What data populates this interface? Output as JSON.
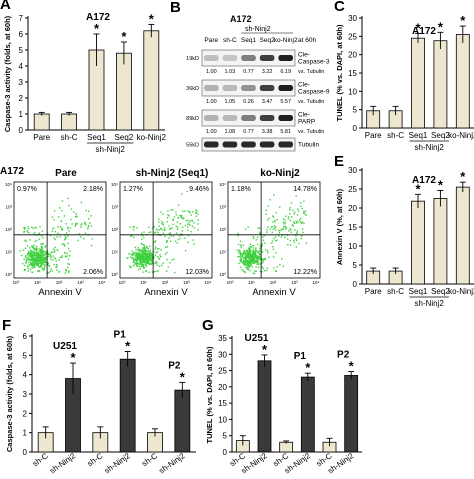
{
  "colors": {
    "beige": "#eee7cf",
    "dark": "#3a3a3a",
    "green": "#3fd13f",
    "blot": "#1e1e1e"
  },
  "panels": {
    "A": {
      "letter": "A",
      "cell": "A172"
    },
    "B": {
      "letter": "B",
      "cell": "A172",
      "group": "sh-Ninj2",
      "lanes": [
        "Pare",
        "sh-C",
        "Seq1",
        "Seq2",
        "ko-Ninj2"
      ],
      "time": "at 60h",
      "rows": [
        {
          "mw": "19kD",
          "label": "Cle-\nCaspase-3",
          "vals": [
            "1.00",
            "1.03",
            "0.77",
            "3.22",
            "6.19"
          ],
          "vs": "vs. Tubulin"
        },
        {
          "mw": "36kD",
          "label": "Cle-\nCaspase-9",
          "vals": [
            "1.00",
            "1.05",
            "0.26",
            "3.47",
            "5.57"
          ],
          "vs": "vs. Tubulin"
        },
        {
          "mw": "89kD",
          "label": "Cle-\nPARP",
          "vals": [
            "1.00",
            "1.08",
            "0.77",
            "3.38",
            "5.81"
          ],
          "vs": "vs. Tubulin"
        },
        {
          "mw": "55kD",
          "label": "Tubulin",
          "vals": [],
          "vs": ""
        }
      ]
    },
    "C": {
      "letter": "C",
      "cell": "A172"
    },
    "D": {
      "cell": "A172",
      "plots": [
        {
          "title": "Pare",
          "ul": "0.97%",
          "ur": "2.18%",
          "lr": "2.06%"
        },
        {
          "title": "sh-Ninj2 (Seq1)",
          "ul": "1.27%",
          "ur": "9.46%",
          "lr": "12.03%"
        },
        {
          "title": "ko-Ninj2",
          "ul": "1.18%",
          "ur": "14.78%",
          "lr": "12.22%"
        }
      ],
      "xlabel": "Annexin V",
      "yticks": [
        "10⁴",
        "10³",
        "10²",
        "10¹",
        "10⁰"
      ],
      "xticks": [
        "10⁰",
        "10¹",
        "10²",
        "10³",
        "10⁴"
      ]
    },
    "E": {
      "letter": "E",
      "cell": "A172"
    },
    "F": {
      "letter": "F",
      "groups": [
        "U251",
        "P1",
        "P2"
      ]
    },
    "G": {
      "letter": "G",
      "groups": [
        "U251",
        "P1",
        "P2"
      ]
    }
  },
  "chart_data": [
    {
      "panel": "A",
      "type": "bar",
      "ylabel": "Caspase-3 activity (folds, at 60h)",
      "categories": [
        "Pare",
        "sh-C",
        "Seq1",
        "Seq2",
        "ko-Ninj2"
      ],
      "group_label": "sh-Ninj2",
      "values": [
        1.0,
        1.0,
        5.0,
        4.8,
        6.2
      ],
      "errors": [
        0.1,
        0.1,
        1.0,
        0.7,
        0.4
      ],
      "significant": [
        false,
        false,
        true,
        true,
        true
      ],
      "ylim": [
        0,
        7
      ],
      "yticks": [
        0,
        1,
        2,
        3,
        4,
        5,
        6,
        7
      ]
    },
    {
      "panel": "C",
      "type": "bar",
      "ylabel": "TUNEL (% vs. DAPI, at 60h)",
      "categories": [
        "Pare",
        "sh-C",
        "Seq1",
        "Seq2",
        "ko-Ninj2"
      ],
      "group_label": "sh-Ninj2",
      "values": [
        4.7,
        4.7,
        24.5,
        23.8,
        25.5
      ],
      "errors": [
        1.2,
        1.2,
        1.3,
        2.3,
        2.3
      ],
      "significant": [
        false,
        false,
        true,
        true,
        true
      ],
      "ylim": [
        0,
        30
      ],
      "yticks": [
        0,
        5,
        10,
        15,
        20,
        25,
        30
      ]
    },
    {
      "panel": "E",
      "type": "bar",
      "ylabel": "Annexin V (%, at 60h)",
      "categories": [
        "Pare",
        "sh-C",
        "Seq1",
        "Seq2",
        "ko-Ninj2"
      ],
      "group_label": "sh-Ninj2",
      "values": [
        3.4,
        3.4,
        21.8,
        22.5,
        25.5
      ],
      "errors": [
        0.8,
        0.8,
        1.8,
        2.1,
        1.3
      ],
      "significant": [
        false,
        false,
        true,
        true,
        true
      ],
      "ylim": [
        0,
        30
      ],
      "yticks": [
        0,
        5,
        10,
        15,
        20,
        25,
        30
      ]
    },
    {
      "panel": "F",
      "type": "bar",
      "ylabel": "Caspase-3 activity (folds, at 60h)",
      "categories": [
        "sh-C",
        "sh-Ninj2",
        "sh-C",
        "sh-Ninj2",
        "sh-C",
        "sh-Ninj2"
      ],
      "values": [
        1.0,
        3.8,
        1.0,
        4.8,
        1.0,
        3.2
      ],
      "errors": [
        0.3,
        0.8,
        0.3,
        0.4,
        0.2,
        0.4
      ],
      "significant": [
        false,
        true,
        false,
        true,
        false,
        true
      ],
      "ylim": [
        0,
        6
      ],
      "yticks": [
        0,
        1,
        2,
        3,
        4,
        5,
        6
      ]
    },
    {
      "panel": "G",
      "type": "bar",
      "ylabel": "TUNEL (% vs. DAPI, at 60h)",
      "categories": [
        "sh-C",
        "sh-Ninj2",
        "sh-C",
        "sh-Ninj2",
        "sh-C",
        "sh-Ninj2"
      ],
      "values": [
        3.5,
        28.0,
        3.0,
        23.0,
        3.0,
        23.5
      ],
      "errors": [
        1.5,
        1.8,
        0.4,
        1.2,
        1.2,
        1.2
      ],
      "significant": [
        false,
        true,
        false,
        true,
        false,
        true
      ],
      "ylim": [
        0,
        35
      ],
      "yticks": [
        0,
        5,
        10,
        15,
        20,
        25,
        30,
        35
      ]
    }
  ]
}
